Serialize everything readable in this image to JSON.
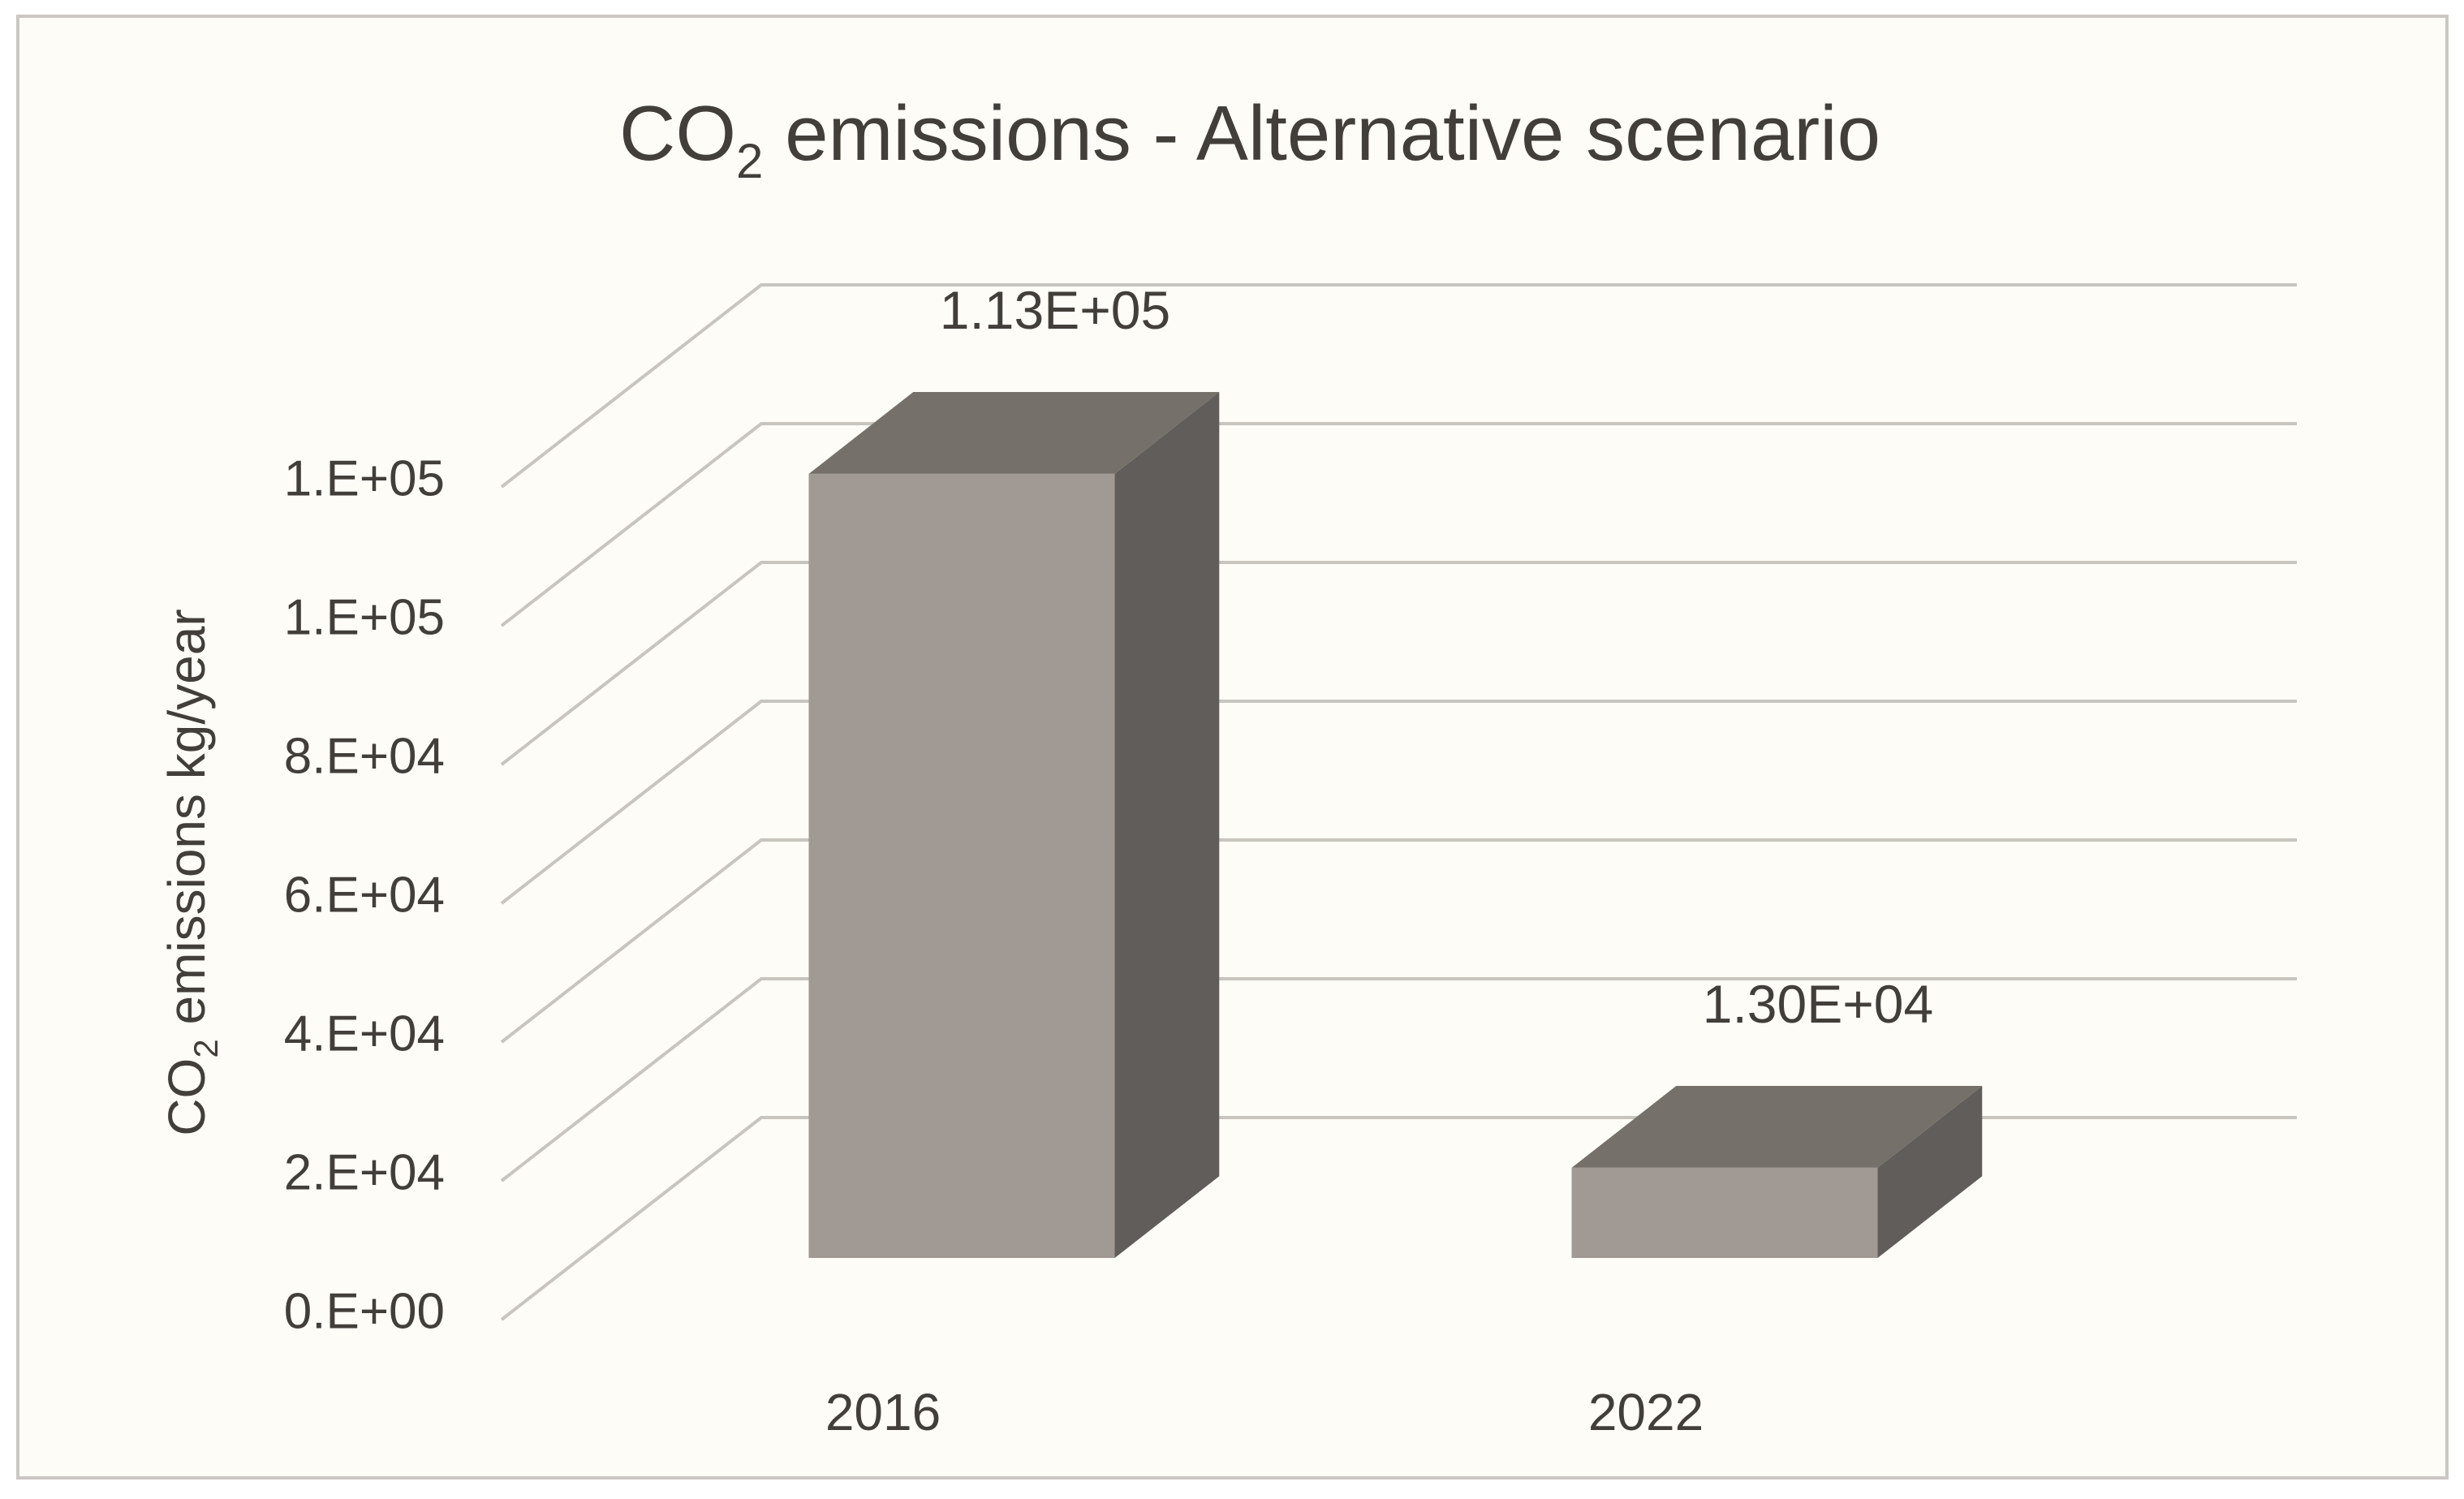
{
  "title": {
    "pre": "CO",
    "sub": "2",
    "post": " emissions - Alternative scenario"
  },
  "y_axis": {
    "title": {
      "pre": "CO",
      "sub": "2",
      "post": " emissions kg/year"
    },
    "tick_labels_bottom_up": [
      "0.E+00",
      "2.E+04",
      "4.E+04",
      "6.E+04",
      "8.E+04",
      "1.E+05",
      "1.E+05"
    ]
  },
  "x_axis": {
    "category_labels": [
      "2016",
      "2022"
    ]
  },
  "chart_data": {
    "type": "bar",
    "projection": "3d",
    "title": "CO2 emissions - Alternative scenario",
    "ylabel": "CO2 emissions kg/year",
    "xlabel": "",
    "categories": [
      "2016",
      "2022"
    ],
    "values": [
      113000,
      13000
    ],
    "data_labels": [
      "1.13E+05",
      "1.30E+04"
    ],
    "y_ticks_bottom_up": [
      "0.E+00",
      "2.E+04",
      "4.E+04",
      "6.E+04",
      "8.E+04",
      "1.E+05",
      "1.E+05"
    ],
    "ylim": [
      0,
      120000
    ],
    "y_tick_interval": 20000,
    "grid": true,
    "legend": false
  },
  "colors": {
    "background": "#fdfcf7",
    "frame_border": "#cbc8c3",
    "gridline": "#c8c4be",
    "text": "#423e3a",
    "bar_front": "#a19993",
    "bar_top": "#76706b",
    "bar_side": "#615d5a"
  }
}
